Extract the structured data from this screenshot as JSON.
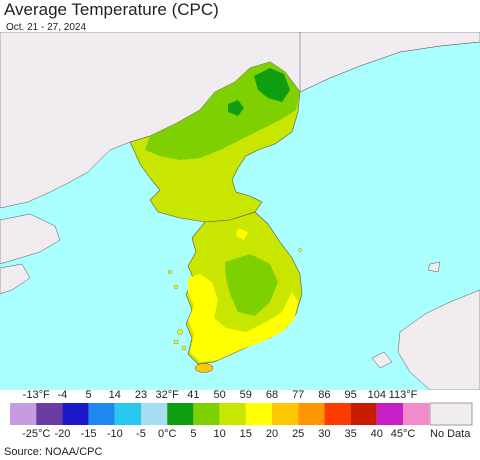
{
  "title": "Average Temperature (CPC)",
  "subtitle": "Oct. 21 - 27, 2024",
  "legend": {
    "f_ticks": [
      "-13°F",
      "-4",
      "5",
      "14",
      "23",
      "32°F",
      "41",
      "50",
      "59",
      "68",
      "77",
      "86",
      "95",
      "104",
      "113°F"
    ],
    "c_ticks": [
      "-25°C",
      "-20",
      "-15",
      "-10",
      "-5",
      "0°C",
      "5",
      "10",
      "15",
      "20",
      "25",
      "30",
      "35",
      "40",
      "45°C"
    ],
    "colors": [
      "#c79be0",
      "#6a3da0",
      "#1a1ac8",
      "#1e88f0",
      "#29c8f0",
      "#a8dcf0",
      "#0f9e0f",
      "#7fd000",
      "#c8e600",
      "#ffff00",
      "#ffc800",
      "#ff9600",
      "#ff3c00",
      "#c81e00",
      "#c81ec8",
      "#f08ccb"
    ],
    "no_data_color": "#f0ecf0",
    "no_data_label": "No Data"
  },
  "map_colors": {
    "sea": "#aaffff",
    "land_no_data": "#f0ecf0",
    "temp_5_10": "#7fd000",
    "temp_10_15": "#c8e600",
    "temp_15_20": "#ffff00",
    "temp_20_25": "#ffc800",
    "temp_0_5": "#0f9e0f"
  },
  "source": "Source: NOAA/CPC"
}
